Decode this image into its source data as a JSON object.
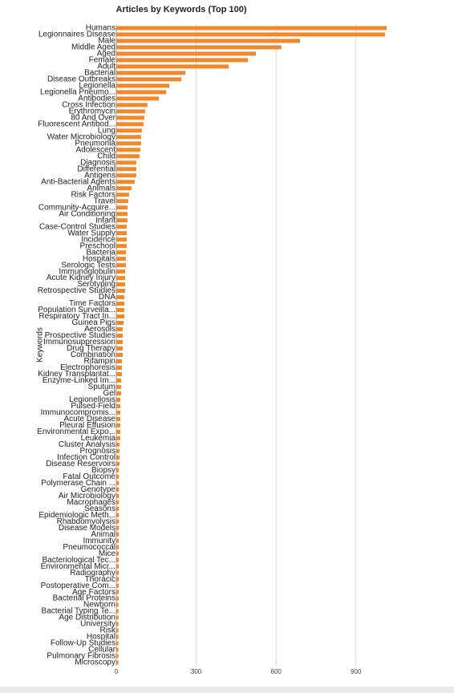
{
  "chart_data": {
    "type": "bar",
    "orientation": "horizontal",
    "title": "Articles by Keywords (Top 100)",
    "y_label": "Keywords",
    "color": "#f0892c",
    "grid": true,
    "xlim": [
      0,
      1050
    ],
    "xticks": [
      0,
      300,
      600,
      900
    ],
    "categories": [
      "Humans",
      "Legionnaires Disease",
      "Male",
      "Middle Aged",
      "Aged",
      "Female",
      "Adult",
      "Bacterial",
      "Disease Outbreaks",
      "Legionella",
      "Legionella Pneumo...",
      "Antibodies",
      "Cross Infection",
      "Erythromycin",
      "80 And Over",
      "Fluorescent Antibod...",
      "Lung",
      "Water Microbiology",
      "Pneumonia",
      "Adolescent",
      "Child",
      "Diagnosis",
      "Differential",
      "Antigens",
      "Anti-Bacterial Agents",
      "Animals",
      "Risk Factors",
      "Travel",
      "Community-Acquire...",
      "Air Conditioning",
      "Infant",
      "Case-Control Studies",
      "Water Supply",
      "Incidence",
      "Preschool",
      "Bacteria",
      "Hospitals",
      "Serologic Tests",
      "Immunoglobulin",
      "Acute Kidney Injury",
      "Serotyping",
      "Retrospective Studies",
      "DNA",
      "Time Factors",
      "Population Surveilla...",
      "Respiratory Tract In...",
      "Guinea Pigs",
      "Aerosols",
      "Prospective Studies",
      "Immunosuppression",
      "Drug Therapy",
      "Combination",
      "Rifampin",
      "Electrophoresis",
      "Kidney Transplantat...",
      "Enzyme-Linked Im...",
      "Sputum",
      "Gel",
      "Legionellosis",
      "Pulsed-Field",
      "Immunocompromis...",
      "Acute Disease",
      "Pleural Effusion",
      "Environmental Expo...",
      "Leukemia",
      "Cluster Analysis",
      "Prognosis",
      "Infection Control",
      "Disease Reservoirs",
      "Biopsy",
      "Fatal Outcome",
      "Polymerase Chain ...",
      "Genotype",
      "Air Microbiology",
      "Macrophages",
      "Seasons",
      "Epidemiologic Meth...",
      "Rhabdomyolysis",
      "Disease Models",
      "Animal",
      "Immunity",
      "Pneumococcal",
      "Mice",
      "Bacteriological Tec...",
      "Environmental Micr...",
      "Radiography",
      "Thoracic",
      "Postoperative Com...",
      "Age Factors",
      "Bacterial Proteins",
      "Newborn",
      "Bacterial Typing Te...",
      "Age Distribution",
      "University",
      "Risk",
      "Hospital",
      "Follow-Up Studies",
      "Cellular",
      "Pulmonary Fibrosis",
      "Microscopy"
    ],
    "values": [
      1015,
      1009,
      690,
      620,
      524,
      494,
      422,
      259,
      244,
      199,
      187,
      160,
      117,
      108,
      105,
      102,
      96,
      93,
      93,
      90,
      87,
      75,
      75,
      75,
      69,
      57,
      48,
      45,
      42,
      42,
      42,
      39,
      39,
      39,
      39,
      36,
      36,
      36,
      33,
      33,
      33,
      33,
      30,
      30,
      30,
      30,
      27,
      24,
      24,
      24,
      24,
      24,
      21,
      21,
      21,
      18,
      18,
      18,
      15,
      15,
      15,
      15,
      15,
      15,
      15,
      12,
      12,
      12,
      12,
      10,
      10,
      10,
      10,
      10,
      10,
      10,
      10,
      10,
      10,
      10,
      9,
      9,
      9,
      9,
      9,
      9,
      9,
      9,
      9,
      9,
      8,
      8,
      8,
      8,
      8,
      8,
      8,
      8,
      8,
      8
    ]
  }
}
